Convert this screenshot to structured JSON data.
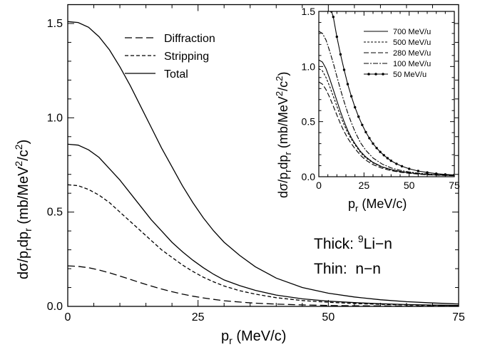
{
  "chart_data": [
    {
      "id": "main",
      "type": "line",
      "xlabel": {
        "base": "p",
        "sub": "r",
        "rest": " (MeV/c)"
      },
      "ylabel": {
        "a": "dσ/p",
        "sub1": "r",
        "b": "dp",
        "sub2": "r",
        "c": " (mb/MeV",
        "sup": "2",
        "d": "/c",
        "sup2": "2",
        "e": ")"
      },
      "xlim": [
        0,
        75
      ],
      "ylim": [
        0,
        1.6
      ],
      "xticks": [
        0,
        25,
        50,
        75
      ],
      "xtick_labels": [
        "0",
        "25",
        "50",
        "75"
      ],
      "yticks": [
        0.0,
        0.5,
        1.0,
        1.5
      ],
      "ytick_labels": [
        "0.0",
        "0.5",
        "1.0",
        "1.5"
      ],
      "legend": [
        {
          "label": "Diffraction",
          "style": "dashed"
        },
        {
          "label": "Stripping",
          "style": "dotted"
        },
        {
          "label": "Total",
          "style": "solid"
        }
      ],
      "annotations": [
        {
          "pre": "Thick: ",
          "sup": "9",
          "post": "Li−n"
        },
        {
          "pre": "Thin:  n−n",
          "sup": "",
          "post": ""
        }
      ],
      "series": [
        {
          "style": "solid",
          "x": [
            0,
            2,
            4,
            6,
            8,
            10,
            12,
            14,
            16,
            18,
            20,
            22,
            24,
            26,
            28,
            30,
            33,
            36,
            40,
            45,
            50,
            55,
            60,
            65,
            70,
            75
          ],
          "values": [
            1.51,
            1.505,
            1.48,
            1.43,
            1.36,
            1.27,
            1.17,
            1.06,
            0.95,
            0.84,
            0.74,
            0.64,
            0.55,
            0.47,
            0.4,
            0.34,
            0.27,
            0.21,
            0.15,
            0.1,
            0.07,
            0.05,
            0.035,
            0.025,
            0.018,
            0.013
          ]
        },
        {
          "style": "solid",
          "x": [
            0,
            2,
            4,
            6,
            8,
            10,
            12,
            14,
            16,
            18,
            20,
            22,
            24,
            26,
            28,
            30,
            33,
            36,
            40,
            45,
            50,
            55,
            60,
            65,
            70,
            75
          ],
          "values": [
            0.86,
            0.855,
            0.83,
            0.79,
            0.73,
            0.67,
            0.6,
            0.53,
            0.46,
            0.4,
            0.34,
            0.29,
            0.245,
            0.205,
            0.17,
            0.14,
            0.11,
            0.085,
            0.06,
            0.04,
            0.028,
            0.02,
            0.014,
            0.01,
            0.007,
            0.005
          ]
        },
        {
          "style": "dotted",
          "x": [
            0,
            2,
            4,
            6,
            8,
            10,
            12,
            14,
            16,
            18,
            20,
            22,
            24,
            26,
            28,
            30,
            33,
            36,
            40,
            45,
            50,
            55,
            60,
            65,
            70,
            75
          ],
          "values": [
            0.645,
            0.64,
            0.62,
            0.59,
            0.55,
            0.5,
            0.45,
            0.4,
            0.35,
            0.3,
            0.26,
            0.22,
            0.185,
            0.155,
            0.13,
            0.108,
            0.083,
            0.065,
            0.046,
            0.031,
            0.022,
            0.015,
            0.011,
            0.008,
            0.006,
            0.004
          ]
        },
        {
          "style": "dashed",
          "x": [
            0,
            2,
            4,
            6,
            8,
            10,
            12,
            14,
            16,
            18,
            20,
            22,
            24,
            26,
            28,
            30,
            33,
            36,
            40,
            45,
            50,
            55,
            60,
            65,
            70,
            75
          ],
          "values": [
            0.215,
            0.212,
            0.205,
            0.193,
            0.178,
            0.161,
            0.143,
            0.125,
            0.108,
            0.092,
            0.078,
            0.065,
            0.054,
            0.045,
            0.037,
            0.03,
            0.023,
            0.017,
            0.012,
            0.008,
            0.005,
            0.0035,
            0.0025,
            0.0018,
            0.0013,
            0.001
          ]
        }
      ]
    },
    {
      "id": "inset",
      "type": "line",
      "xlabel": {
        "base": "p",
        "sub": "r",
        "rest": " (MeV/c)"
      },
      "ylabel": {
        "a": "dσ/p",
        "sub1": "r",
        "b": "dp",
        "sub2": "r",
        "c": " (mb/MeV",
        "sup": "2",
        "d": "/c",
        "sup2": "2",
        "e": ")"
      },
      "xlim": [
        0,
        75
      ],
      "ylim": [
        0,
        1.5
      ],
      "xticks": [
        0,
        25,
        50,
        75
      ],
      "xtick_labels": [
        "0",
        "25",
        "50",
        "75"
      ],
      "yticks": [
        0.0,
        0.5,
        1.0,
        1.5
      ],
      "ytick_labels": [
        "0.0",
        "0.5",
        "1.0",
        "1.5"
      ],
      "legend": [
        {
          "label": "700 MeV/u",
          "style": "solid"
        },
        {
          "label": "500 MeV/u",
          "style": "dotted"
        },
        {
          "label": "280 MeV/u",
          "style": "dashed"
        },
        {
          "label": "100 MeV/u",
          "style": "dashdot"
        },
        {
          "label": "50 MeV/u",
          "style": "solid-dots"
        }
      ],
      "series": [
        {
          "style": "solid",
          "x": [
            0,
            2,
            4,
            6,
            8,
            10,
            12,
            14,
            16,
            18,
            20,
            23,
            26,
            30,
            35,
            40,
            45,
            50,
            55,
            60,
            65,
            70,
            75
          ],
          "values": [
            1.06,
            1.04,
            0.98,
            0.89,
            0.79,
            0.69,
            0.59,
            0.5,
            0.42,
            0.355,
            0.3,
            0.23,
            0.18,
            0.13,
            0.09,
            0.065,
            0.048,
            0.036,
            0.028,
            0.022,
            0.017,
            0.014,
            0.011
          ]
        },
        {
          "style": "dotted",
          "x": [
            0,
            2,
            4,
            6,
            8,
            10,
            12,
            14,
            16,
            18,
            20,
            23,
            26,
            30,
            35,
            40,
            45,
            50,
            55,
            60,
            65,
            70,
            75
          ],
          "values": [
            0.98,
            0.96,
            0.9,
            0.82,
            0.73,
            0.64,
            0.55,
            0.47,
            0.4,
            0.34,
            0.29,
            0.22,
            0.17,
            0.125,
            0.087,
            0.062,
            0.046,
            0.034,
            0.026,
            0.02,
            0.016,
            0.013,
            0.01
          ]
        },
        {
          "style": "dashed",
          "x": [
            0,
            2,
            4,
            6,
            8,
            10,
            12,
            14,
            16,
            18,
            20,
            23,
            26,
            30,
            35,
            40,
            45,
            50,
            55,
            60,
            65,
            70,
            75
          ],
          "values": [
            0.86,
            0.84,
            0.79,
            0.72,
            0.64,
            0.56,
            0.48,
            0.41,
            0.35,
            0.3,
            0.255,
            0.195,
            0.15,
            0.11,
            0.077,
            0.055,
            0.041,
            0.031,
            0.024,
            0.018,
            0.014,
            0.011,
            0.009
          ]
        },
        {
          "style": "dashdot",
          "x": [
            0,
            2,
            4,
            6,
            8,
            10,
            12,
            14,
            16,
            18,
            20,
            23,
            26,
            30,
            35,
            40,
            45,
            50,
            55,
            60,
            65,
            70,
            75
          ],
          "values": [
            1.32,
            1.3,
            1.24,
            1.14,
            1.03,
            0.91,
            0.79,
            0.68,
            0.58,
            0.49,
            0.41,
            0.31,
            0.24,
            0.17,
            0.115,
            0.08,
            0.058,
            0.043,
            0.032,
            0.025,
            0.019,
            0.015,
            0.012
          ]
        },
        {
          "style": "solid-dots",
          "x": [
            7,
            8,
            10,
            12,
            14,
            16,
            18,
            20,
            22,
            24,
            26,
            28,
            30,
            32,
            34,
            36,
            38,
            40,
            43,
            46,
            50,
            55,
            60,
            65,
            70,
            75
          ],
          "values": [
            1.5,
            1.45,
            1.27,
            1.11,
            0.97,
            0.84,
            0.73,
            0.63,
            0.545,
            0.47,
            0.405,
            0.35,
            0.3,
            0.26,
            0.225,
            0.195,
            0.168,
            0.145,
            0.117,
            0.095,
            0.072,
            0.052,
            0.038,
            0.028,
            0.021,
            0.016
          ]
        }
      ]
    }
  ]
}
